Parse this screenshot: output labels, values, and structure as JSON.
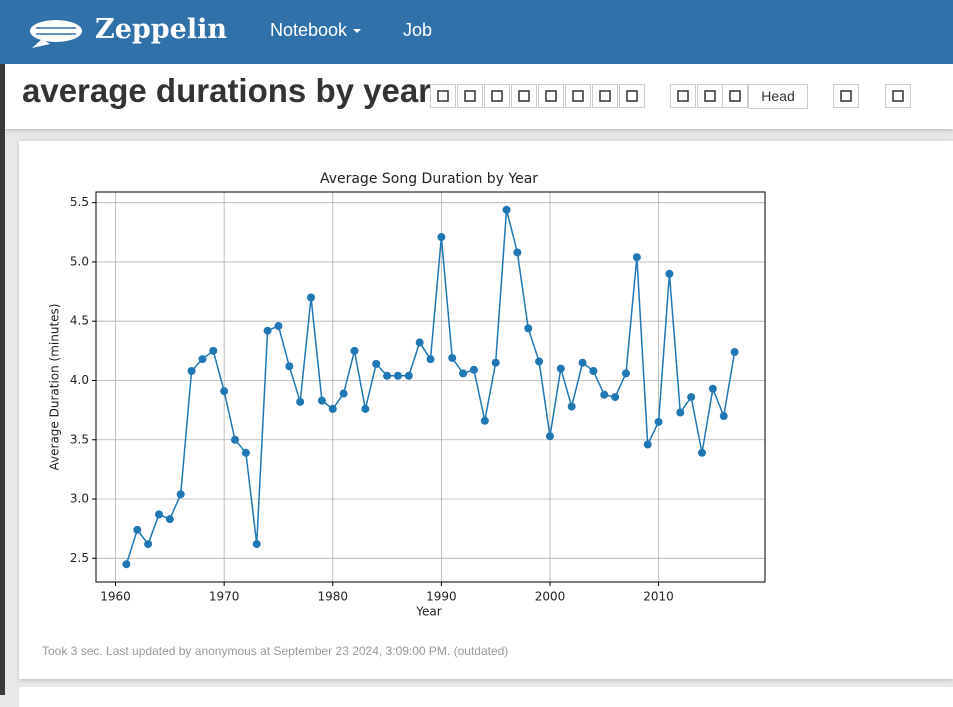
{
  "header": {
    "brand": "Zeppelin",
    "nav": [
      "Notebook",
      "Job"
    ]
  },
  "notebook": {
    "title": "average durations by year",
    "display_mode": "Head"
  },
  "chart_data": {
    "type": "line",
    "title": "Average Song Duration by Year",
    "x_label": "Year",
    "y_label": "Average Duration (minutes)",
    "x": [
      1961,
      1962,
      1963,
      1964,
      1965,
      1966,
      1967,
      1968,
      1969,
      1970,
      1971,
      1972,
      1973,
      1974,
      1975,
      1976,
      1977,
      1978,
      1979,
      1980,
      1981,
      1982,
      1983,
      1984,
      1985,
      1986,
      1987,
      1988,
      1989,
      1990,
      1991,
      1992,
      1993,
      1994,
      1995,
      1996,
      1997,
      1998,
      1999,
      2000,
      2001,
      2002,
      2003,
      2004,
      2005,
      2006,
      2007,
      2008,
      2009,
      2010,
      2011,
      2012,
      2013,
      2014,
      2015,
      2016,
      2017
    ],
    "values": [
      2.45,
      2.74,
      2.62,
      2.87,
      2.83,
      3.04,
      4.08,
      4.18,
      4.25,
      3.91,
      3.5,
      3.39,
      2.62,
      4.42,
      4.46,
      4.12,
      3.82,
      4.7,
      3.83,
      3.76,
      3.89,
      4.25,
      3.76,
      4.14,
      4.04,
      4.04,
      4.04,
      4.32,
      4.18,
      5.21,
      4.19,
      4.06,
      4.09,
      3.66,
      4.15,
      5.44,
      5.08,
      4.44,
      4.16,
      3.53,
      4.1,
      3.78,
      4.15,
      4.08,
      3.88,
      3.86,
      4.06,
      5.04,
      3.46,
      3.65,
      4.9,
      3.73,
      3.86,
      3.39,
      3.93,
      3.7,
      4.24
    ],
    "color": "#1f77b4",
    "marker": true,
    "grid": true,
    "xlim": [
      1958.2,
      2019.8
    ],
    "xticks": [
      1960,
      1970,
      1980,
      1990,
      2000,
      2010
    ],
    "ylim": [
      2.3,
      5.59
    ],
    "yticks": [
      2.5,
      {
        "value": 3.0,
        "label": "3.0"
      },
      3.5,
      {
        "value": 4.0,
        "label": "4.0"
      },
      4.5,
      {
        "value": 5.0,
        "label": "5.0"
      },
      5.5
    ]
  },
  "status": "Took 3 sec. Last updated by anonymous at September 23 2024, 3:09:00 PM. (outdated)"
}
